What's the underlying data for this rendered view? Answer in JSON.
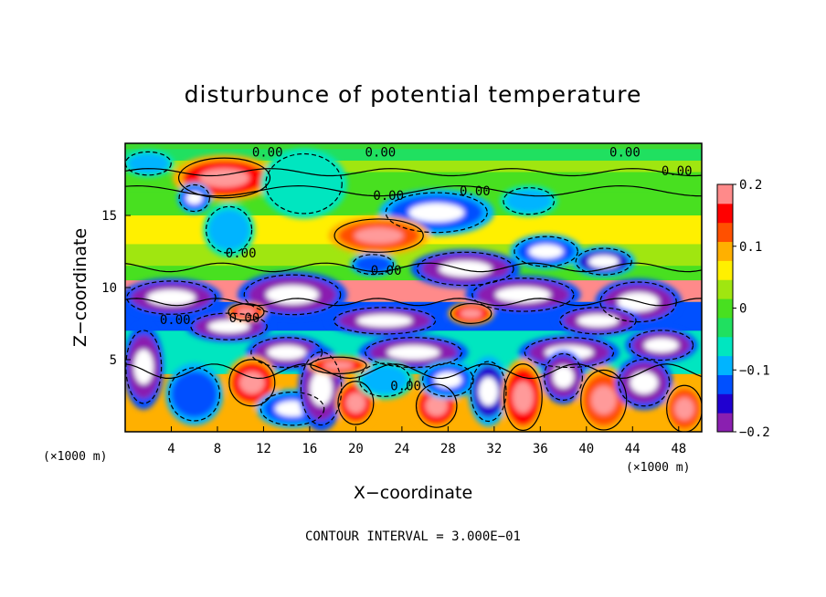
{
  "chart_data": {
    "type": "heatmap",
    "title": "disturbunce of potential temperature",
    "xlabel": "X−coordinate",
    "ylabel": "Z−coordinate",
    "x_unit": "(×1000 m)",
    "x_unit_right": "(×1000 m)",
    "xlim": [
      0,
      50
    ],
    "ylim": [
      0,
      20
    ],
    "x_ticks": [
      4,
      8,
      12,
      16,
      20,
      24,
      28,
      32,
      36,
      40,
      44,
      48
    ],
    "y_ticks": [
      5,
      10,
      15
    ],
    "colorbar": {
      "range": [
        -0.2,
        0.2
      ],
      "ticks": [
        0.2,
        0.1,
        0,
        -0.1,
        -0.2
      ],
      "tick_labels": [
        "0.2",
        "0.1",
        "0",
        "−0.1",
        "−0.2"
      ],
      "colors": [
        "#8a1fb0",
        "#2000d0",
        "#0050ff",
        "#00b4ff",
        "#00e6c0",
        "#20e060",
        "#48e020",
        "#a0e610",
        "#fff000",
        "#ffb000",
        "#ff5000",
        "#ff0000",
        "#ff8a8a"
      ]
    },
    "contour_interval_text": "CONTOUR INTERVAL = 3.000E−01",
    "contour_labels": [
      "0.00",
      "0.00",
      "0.00",
      "0.00",
      "0.00",
      "0.00",
      "0.00",
      "0.00",
      "0.00",
      "0.00",
      "0.00"
    ],
    "layers": [
      {
        "z": [
          18.8,
          19.6
        ],
        "value": -0.02
      },
      {
        "z": [
          18.0,
          18.8
        ],
        "value": 0.02
      },
      {
        "z": [
          16.6,
          18.0
        ],
        "value": 0.0
      },
      {
        "z": [
          15.0,
          16.6
        ],
        "value": 0.01
      },
      {
        "z": [
          13.0,
          15.0
        ],
        "value": 0.05
      },
      {
        "z": [
          11.5,
          13.0
        ],
        "value": 0.03
      },
      {
        "z": [
          10.5,
          11.5
        ],
        "value": 0.0
      },
      {
        "z": [
          9.0,
          10.5
        ],
        "value": 0.18
      },
      {
        "z": [
          7.0,
          9.0
        ],
        "value": -0.12
      },
      {
        "z": [
          4.0,
          7.0
        ],
        "value": -0.05
      },
      {
        "z": [
          0.0,
          4.0
        ],
        "value": 0.08
      }
    ],
    "blobs": [
      {
        "x": 2.0,
        "z": 18.6,
        "rx": 1.8,
        "rz": 0.7,
        "value": -0.12
      },
      {
        "x": 8.6,
        "z": 17.6,
        "rx": 3.6,
        "rz": 1.2,
        "value": 0.18
      },
      {
        "x": 15.5,
        "z": 17.2,
        "rx": 3.0,
        "rz": 1.8,
        "value": -0.09
      },
      {
        "x": 9.0,
        "z": 14.0,
        "rx": 1.8,
        "rz": 1.4,
        "value": -0.11
      },
      {
        "x": 6.0,
        "z": 16.2,
        "rx": 1.2,
        "rz": 0.8,
        "value": -0.15
      },
      {
        "x": 27.0,
        "z": 15.2,
        "rx": 4.0,
        "rz": 1.2,
        "value": -0.16
      },
      {
        "x": 35.0,
        "z": 16.0,
        "rx": 2.0,
        "rz": 0.8,
        "value": -0.12
      },
      {
        "x": 22.0,
        "z": 13.6,
        "rx": 3.5,
        "rz": 1.0,
        "value": 0.16
      },
      {
        "x": 29.5,
        "z": 11.3,
        "rx": 3.8,
        "rz": 1.0,
        "value": -0.2
      },
      {
        "x": 21.5,
        "z": 11.6,
        "rx": 1.6,
        "rz": 0.6,
        "value": -0.14
      },
      {
        "x": 36.5,
        "z": 12.5,
        "rx": 2.5,
        "rz": 0.9,
        "value": -0.15
      },
      {
        "x": 41.5,
        "z": 11.8,
        "rx": 2.2,
        "rz": 0.8,
        "value": -0.18
      },
      {
        "x": 4.0,
        "z": 9.3,
        "rx": 3.5,
        "rz": 1.0,
        "value": -0.2
      },
      {
        "x": 14.5,
        "z": 9.5,
        "rx": 3.8,
        "rz": 1.2,
        "value": -0.2
      },
      {
        "x": 34.5,
        "z": 9.5,
        "rx": 4.0,
        "rz": 1.0,
        "value": -0.2
      },
      {
        "x": 44.5,
        "z": 9.0,
        "rx": 3.0,
        "rz": 1.2,
        "value": -0.2
      },
      {
        "x": 22.5,
        "z": 7.7,
        "rx": 4.0,
        "rz": 0.8,
        "value": -0.2
      },
      {
        "x": 9.0,
        "z": 7.3,
        "rx": 3.0,
        "rz": 0.8,
        "value": -0.2
      },
      {
        "x": 41.0,
        "z": 7.7,
        "rx": 3.0,
        "rz": 0.8,
        "value": -0.2
      },
      {
        "x": 14.0,
        "z": 5.5,
        "rx": 2.8,
        "rz": 0.9,
        "value": -0.2
      },
      {
        "x": 25.0,
        "z": 5.5,
        "rx": 3.8,
        "rz": 0.9,
        "value": -0.2
      },
      {
        "x": 38.5,
        "z": 5.5,
        "rx": 3.5,
        "rz": 0.9,
        "value": -0.2
      },
      {
        "x": 46.5,
        "z": 6.0,
        "rx": 2.5,
        "rz": 0.9,
        "value": -0.2
      },
      {
        "x": 1.6,
        "z": 4.5,
        "rx": 1.4,
        "rz": 2.2,
        "value": -0.2
      },
      {
        "x": 6.0,
        "z": 2.6,
        "rx": 2.0,
        "rz": 1.6,
        "value": -0.14
      },
      {
        "x": 11.0,
        "z": 3.4,
        "rx": 1.8,
        "rz": 1.4,
        "value": 0.17
      },
      {
        "x": 14.5,
        "z": 1.6,
        "rx": 2.5,
        "rz": 1.0,
        "value": -0.16
      },
      {
        "x": 17.0,
        "z": 3.0,
        "rx": 1.6,
        "rz": 2.2,
        "value": -0.2
      },
      {
        "x": 20.0,
        "z": 2.0,
        "rx": 1.4,
        "rz": 1.3,
        "value": 0.18
      },
      {
        "x": 22.5,
        "z": 3.6,
        "rx": 2.0,
        "rz": 1.0,
        "value": -0.1
      },
      {
        "x": 27.0,
        "z": 1.8,
        "rx": 1.6,
        "rz": 1.3,
        "value": 0.18
      },
      {
        "x": 28.0,
        "z": 3.6,
        "rx": 2.0,
        "rz": 1.0,
        "value": -0.16
      },
      {
        "x": 31.5,
        "z": 2.8,
        "rx": 1.4,
        "rz": 1.8,
        "value": -0.18
      },
      {
        "x": 34.5,
        "z": 2.4,
        "rx": 1.5,
        "rz": 2.0,
        "value": 0.17
      },
      {
        "x": 38.0,
        "z": 3.8,
        "rx": 1.5,
        "rz": 1.4,
        "value": -0.2
      },
      {
        "x": 41.5,
        "z": 2.2,
        "rx": 1.8,
        "rz": 1.8,
        "value": 0.16
      },
      {
        "x": 45.0,
        "z": 3.4,
        "rx": 2.0,
        "rz": 1.4,
        "value": -0.2
      },
      {
        "x": 48.5,
        "z": 1.6,
        "rx": 1.4,
        "rz": 1.4,
        "value": 0.15
      },
      {
        "x": 30.0,
        "z": 8.2,
        "rx": 1.6,
        "rz": 0.6,
        "value": 0.18
      },
      {
        "x": 10.5,
        "z": 8.3,
        "rx": 1.4,
        "rz": 0.5,
        "value": 0.18
      },
      {
        "x": 18.5,
        "z": 4.6,
        "rx": 2.2,
        "rz": 0.5,
        "value": 0.17
      }
    ]
  }
}
